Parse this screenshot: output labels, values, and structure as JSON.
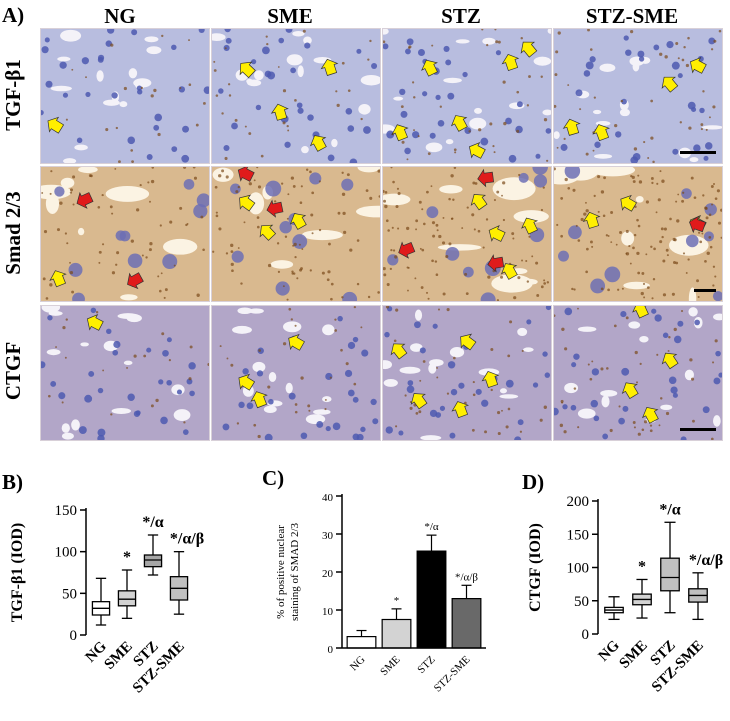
{
  "figure": {
    "panel_letters": [
      "A)",
      "B)",
      "C)",
      "D)"
    ],
    "columns": [
      "NG",
      "SME",
      "STZ",
      "STZ-SME"
    ],
    "rows": [
      "TGF-β1",
      "Smad 2/3",
      "CTGF"
    ]
  },
  "micrographs": {
    "row_backgrounds": [
      "#b8bddf",
      "#d9b98f",
      "#b2a6c8"
    ],
    "yellow_arrow_color": "#ffef00",
    "red_arrow_color": "#e01b1b",
    "scale_bar_color": "#000000"
  },
  "chart_data": [
    {
      "type": "box",
      "panel": "B)",
      "ylabel": "TGF-β1 (IOD)",
      "ylim": [
        0,
        150
      ],
      "yticks": [
        "0",
        "50",
        "100",
        "150"
      ],
      "categories": [
        "NG",
        "SME",
        "STZ",
        "STZ-SME"
      ],
      "boxes": [
        {
          "min": 12,
          "q1": 24,
          "median": 32,
          "q3": 40,
          "max": 68,
          "fill": "#ffffff",
          "annotation": ""
        },
        {
          "min": 20,
          "q1": 35,
          "median": 43,
          "q3": 53,
          "max": 78,
          "fill": "#d3d3d3",
          "annotation": "*"
        },
        {
          "min": 72,
          "q1": 82,
          "median": 90,
          "q3": 96,
          "max": 120,
          "fill": "#a6a6a6",
          "annotation": "*/α"
        },
        {
          "min": 25,
          "q1": 42,
          "median": 56,
          "q3": 70,
          "max": 100,
          "fill": "#c0c0c0",
          "annotation": "*/α/β"
        }
      ]
    },
    {
      "type": "bar",
      "panel": "C)",
      "ylabel_line1": "% of positive nuclear",
      "ylabel_line2": "staining of SMAD 2/3",
      "ylim": [
        0,
        40
      ],
      "yticks": [
        "0",
        "10",
        "20",
        "30",
        "40"
      ],
      "categories": [
        "NG",
        "SME",
        "STZ",
        "STZ-SME"
      ],
      "values": [
        3,
        7.5,
        25.5,
        13
      ],
      "errors": [
        1.6,
        2.8,
        4.2,
        3.5
      ],
      "fills": [
        "#ffffff",
        "#d3d3d3",
        "#000000",
        "#696969"
      ],
      "annotations": [
        "",
        "*",
        "*/α",
        "*/α/β"
      ]
    },
    {
      "type": "box",
      "panel": "D)",
      "ylabel": "CTGF (IOD)",
      "ylim": [
        0,
        200
      ],
      "yticks": [
        "0",
        "50",
        "100",
        "150",
        "200"
      ],
      "categories": [
        "NG",
        "SME",
        "STZ",
        "STZ-SME"
      ],
      "boxes": [
        {
          "min": 22,
          "q1": 32,
          "median": 36,
          "q3": 40,
          "max": 56,
          "fill": "#ffffff",
          "annotation": ""
        },
        {
          "min": 24,
          "q1": 44,
          "median": 52,
          "q3": 60,
          "max": 82,
          "fill": "#d3d3d3",
          "annotation": "*"
        },
        {
          "min": 32,
          "q1": 65,
          "median": 85,
          "q3": 114,
          "max": 168,
          "fill": "#c0c0c0",
          "annotation": "*/α"
        },
        {
          "min": 22,
          "q1": 48,
          "median": 58,
          "q3": 68,
          "max": 92,
          "fill": "#c0c0c0",
          "annotation": "*/α/β"
        }
      ]
    }
  ]
}
